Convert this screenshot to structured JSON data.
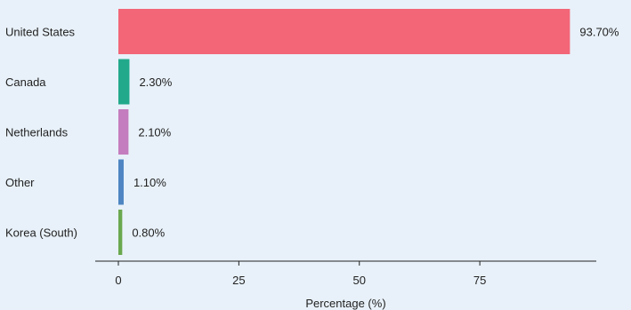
{
  "chart_data": {
    "type": "bar",
    "orientation": "horizontal",
    "categories": [
      "United States",
      "Canada",
      "Netherlands",
      "Other",
      "Korea (South)"
    ],
    "values": [
      93.7,
      2.3,
      2.1,
      1.1,
      0.8
    ],
    "value_labels": [
      "93.70%",
      "2.30%",
      "2.10%",
      "1.10%",
      "0.80%"
    ],
    "colors": [
      "#f26678",
      "#22a98c",
      "#c47dbe",
      "#4e85c2",
      "#6aa84f"
    ],
    "xlabel": "Percentage (%)",
    "ylabel": "",
    "title": "",
    "xlim": [
      0,
      98
    ],
    "xticks": [
      0,
      25,
      50,
      75
    ],
    "grid": false,
    "legend": "none",
    "background": "#e8f1f9"
  }
}
